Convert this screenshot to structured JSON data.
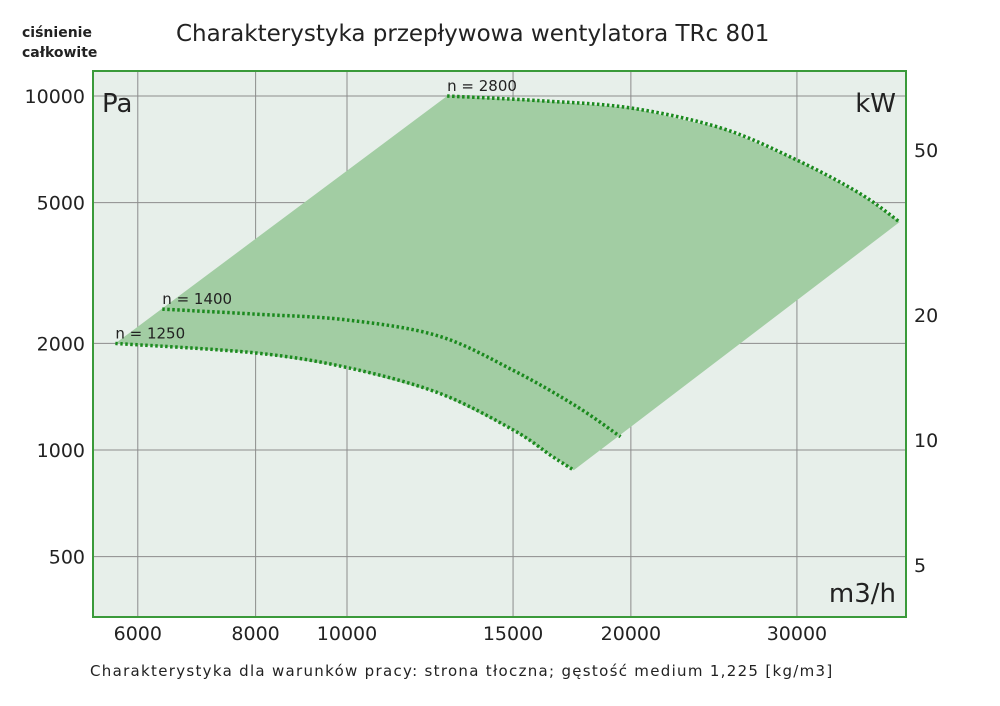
{
  "chart_data": {
    "type": "line",
    "title": "Charakterystyka przepływowa wentylatora TRc 801",
    "ylabel": [
      "ciśnienie",
      "całkowite"
    ],
    "y_unit": "Pa",
    "y2_unit": "kW",
    "x_unit": "m3/h",
    "footnote": "Charakterystyka dla warunków pracy: strona tłoczna; gęstość medium 1,225 [kg/m3]",
    "xscale": "log",
    "yscale": "log",
    "y2scale": "log",
    "xlim": [
      5400,
      40000
    ],
    "ylim": [
      400,
      11800
    ],
    "xticks": [
      6000,
      8000,
      10000,
      15000,
      20000,
      30000
    ],
    "xtick_labels": [
      "6000",
      "8000",
      "10000",
      "15000",
      "20000",
      "30000"
    ],
    "yticks": [
      10000,
      5000,
      2000,
      1000,
      500
    ],
    "ytick_labels": [
      "10000",
      "5000",
      "2000",
      "1000",
      "500"
    ],
    "y2ticks": [
      50,
      20,
      10,
      5
    ],
    "y2tick_labels": [
      "50",
      "20",
      "10",
      "5"
    ],
    "grid": true,
    "series": [
      {
        "name": "n = 2800",
        "x": [
          12770,
          16000,
          20000,
          25000,
          30000,
          35000,
          38550
        ],
        "y": [
          10000,
          9700,
          9250,
          8100,
          6590,
          5300,
          4405
        ]
      },
      {
        "name": "n = 1400",
        "x": [
          6370,
          8000,
          10000,
          12500,
          15000,
          17500,
          19500
        ],
        "y": [
          2500,
          2420,
          2330,
          2100,
          1680,
          1330,
          1090
        ]
      },
      {
        "name": "n = 1250",
        "x": [
          5680,
          8000,
          10000,
          12500,
          15000,
          16500,
          17400
        ],
        "y": [
          2000,
          1880,
          1710,
          1450,
          1140,
          960,
          877
        ]
      }
    ],
    "region": {
      "x": [
        5680,
        12770,
        38550,
        17400
      ],
      "y": [
        2000,
        10000,
        4405,
        877
      ]
    },
    "colors": {
      "fill": "#a2cda3",
      "curve": "#1b8a1e",
      "plot_bg": "#e7efea",
      "frame": "#3a9a3a",
      "grid": "#8c8c8c"
    }
  }
}
